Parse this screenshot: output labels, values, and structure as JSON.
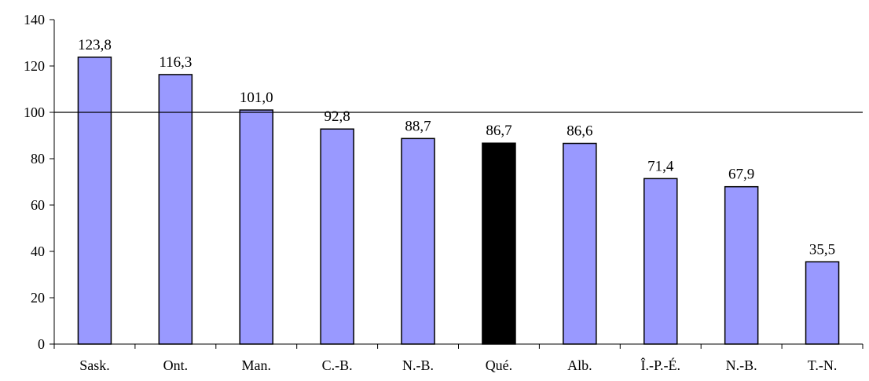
{
  "chart_data": {
    "type": "bar",
    "title": "",
    "xlabel": "",
    "ylabel": "",
    "categories": [
      "Sask.",
      "Ont.",
      "Man.",
      "C.-B.",
      "N.-B.",
      "Qué.",
      "Alb.",
      "Î.-P.-É.",
      "N.-B.",
      "T.-N."
    ],
    "values": [
      123.8,
      116.3,
      101.0,
      92.8,
      88.7,
      86.7,
      86.6,
      71.4,
      67.9,
      35.5
    ],
    "value_labels": [
      "123,8",
      "116,3",
      "101,0",
      "92,8",
      "88,7",
      "86,7",
      "86,6",
      "71,4",
      "67,9",
      "35,5"
    ],
    "ylim": [
      0,
      140
    ],
    "yticks": [
      0,
      20,
      40,
      60,
      80,
      100,
      120,
      140
    ],
    "reference_line": 100,
    "grid": false,
    "legend": "none",
    "colors": {
      "bar": "#9999ff",
      "highlight_bar": "#000000",
      "outline": "#000000"
    },
    "highlight_index": 5
  }
}
